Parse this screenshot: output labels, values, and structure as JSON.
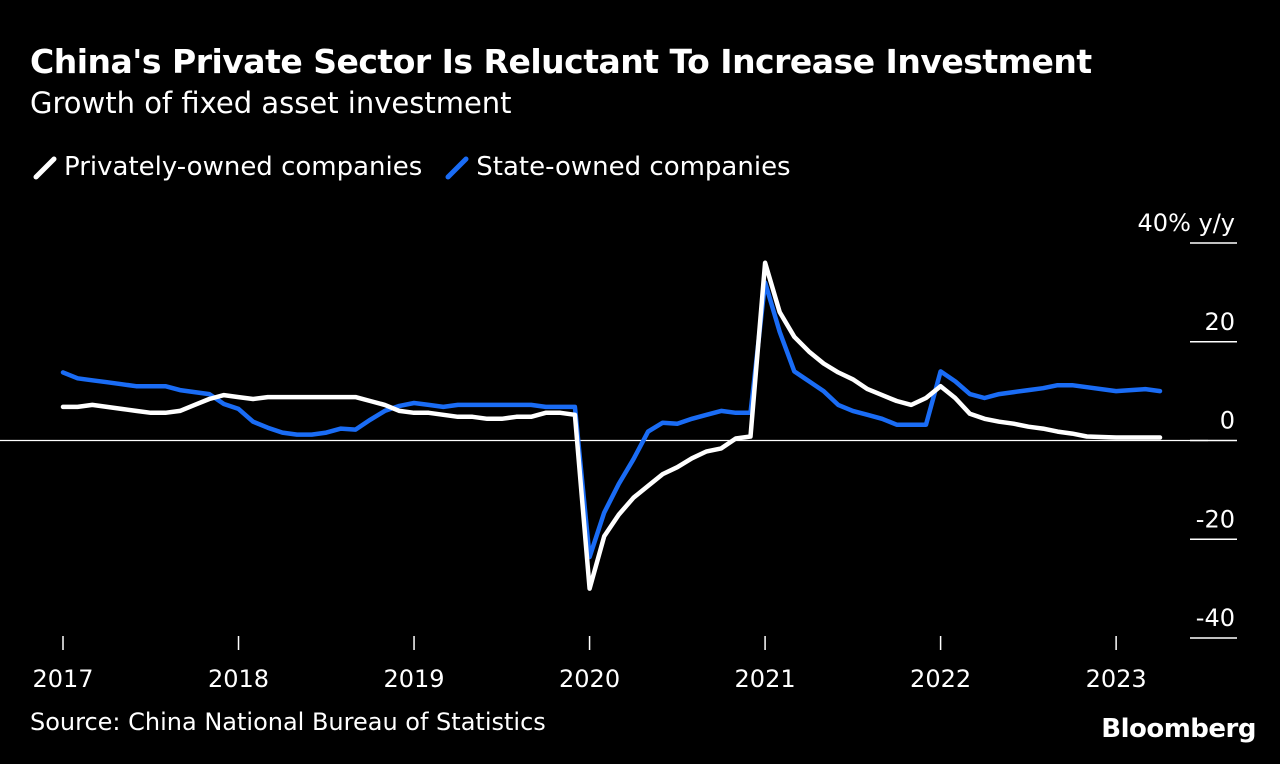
{
  "header": {
    "title": "China's Private Sector Is Reluctant To Increase Investment",
    "subtitle": "Growth of fixed asset investment"
  },
  "footer": {
    "source": "Source: China National Bureau of Statistics",
    "brand": "Bloomberg"
  },
  "colors": {
    "background": "#000000",
    "private": "#ffffff",
    "state": "#1a6cf5",
    "zero_line": "#ffffff"
  },
  "chart_data": {
    "type": "line",
    "title": "China's Private Sector Is Reluctant To Increase Investment",
    "subtitle": "Growth of fixed asset investment",
    "xlabel": "",
    "ylabel": "",
    "unit_label": "y/y",
    "ylim": [
      -40,
      40
    ],
    "y_ticks": [
      40,
      20,
      0,
      -20,
      -40
    ],
    "y_tick_labels": [
      "40% y/y",
      "20",
      "0",
      "-20",
      "-40"
    ],
    "x_ticks": [
      "2017-01",
      "2018-01",
      "2019-01",
      "2020-01",
      "2021-01",
      "2022-01",
      "2023-01"
    ],
    "x_tick_labels": [
      "2017",
      "2018",
      "2019",
      "2020",
      "2021",
      "2022",
      "2023"
    ],
    "legend_placement": "top-left",
    "grid": false,
    "series": [
      {
        "name": "Privately-owned companies",
        "color": "#ffffff",
        "points": [
          [
            "2017-01",
            6.8
          ],
          [
            "2017-02",
            6.8
          ],
          [
            "2017-03",
            7.2
          ],
          [
            "2017-04",
            6.8
          ],
          [
            "2017-05",
            6.4
          ],
          [
            "2017-06",
            6.0
          ],
          [
            "2017-07",
            5.6
          ],
          [
            "2017-08",
            5.6
          ],
          [
            "2017-09",
            6.0
          ],
          [
            "2017-10",
            7.2
          ],
          [
            "2017-11",
            8.4
          ],
          [
            "2017-12",
            9.2
          ],
          [
            "2018-01",
            8.8
          ],
          [
            "2018-02",
            8.4
          ],
          [
            "2018-03",
            8.8
          ],
          [
            "2018-04",
            8.8
          ],
          [
            "2018-05",
            8.8
          ],
          [
            "2018-06",
            8.8
          ],
          [
            "2018-07",
            8.8
          ],
          [
            "2018-08",
            8.8
          ],
          [
            "2018-09",
            8.8
          ],
          [
            "2018-10",
            8.0
          ],
          [
            "2018-11",
            7.2
          ],
          [
            "2018-12",
            6.0
          ],
          [
            "2019-01",
            5.6
          ],
          [
            "2019-02",
            5.6
          ],
          [
            "2019-03",
            5.2
          ],
          [
            "2019-04",
            4.8
          ],
          [
            "2019-05",
            4.8
          ],
          [
            "2019-06",
            4.4
          ],
          [
            "2019-07",
            4.4
          ],
          [
            "2019-08",
            4.8
          ],
          [
            "2019-09",
            4.8
          ],
          [
            "2019-10",
            5.6
          ],
          [
            "2019-11",
            5.6
          ],
          [
            "2019-12",
            5.2
          ],
          [
            "2020-01",
            -30.0
          ],
          [
            "2020-02",
            -19.4
          ],
          [
            "2020-03",
            -15.0
          ],
          [
            "2020-04",
            -11.6
          ],
          [
            "2020-05",
            -9.2
          ],
          [
            "2020-06",
            -6.8
          ],
          [
            "2020-07",
            -5.4
          ],
          [
            "2020-08",
            -3.6
          ],
          [
            "2020-09",
            -2.2
          ],
          [
            "2020-10",
            -1.6
          ],
          [
            "2020-11",
            0.4
          ],
          [
            "2020-12",
            0.8
          ],
          [
            "2021-01",
            36.0
          ],
          [
            "2021-02",
            26.0
          ],
          [
            "2021-03",
            21.0
          ],
          [
            "2021-04",
            18.0
          ],
          [
            "2021-05",
            15.6
          ],
          [
            "2021-06",
            13.8
          ],
          [
            "2021-07",
            12.4
          ],
          [
            "2021-08",
            10.4
          ],
          [
            "2021-09",
            9.2
          ],
          [
            "2021-10",
            8.0
          ],
          [
            "2021-11",
            7.2
          ],
          [
            "2021-12",
            8.6
          ],
          [
            "2022-01",
            11.0
          ],
          [
            "2022-02",
            8.6
          ],
          [
            "2022-03",
            5.4
          ],
          [
            "2022-04",
            4.4
          ],
          [
            "2022-05",
            3.8
          ],
          [
            "2022-06",
            3.4
          ],
          [
            "2022-07",
            2.8
          ],
          [
            "2022-08",
            2.4
          ],
          [
            "2022-09",
            1.8
          ],
          [
            "2022-10",
            1.4
          ],
          [
            "2022-11",
            0.8
          ],
          [
            "2023-01",
            0.6
          ],
          [
            "2023-02",
            0.6
          ],
          [
            "2023-03",
            0.6
          ],
          [
            "2023-04",
            0.6
          ]
        ]
      },
      {
        "name": "State-owned companies",
        "color": "#1a6cf5",
        "points": [
          [
            "2017-01",
            13.8
          ],
          [
            "2017-02",
            12.6
          ],
          [
            "2017-03",
            12.2
          ],
          [
            "2017-04",
            11.8
          ],
          [
            "2017-05",
            11.4
          ],
          [
            "2017-06",
            11.0
          ],
          [
            "2017-07",
            11.0
          ],
          [
            "2017-08",
            11.0
          ],
          [
            "2017-09",
            10.2
          ],
          [
            "2017-10",
            9.8
          ],
          [
            "2017-11",
            9.4
          ],
          [
            "2017-12",
            7.4
          ],
          [
            "2018-01",
            6.4
          ],
          [
            "2018-02",
            3.8
          ],
          [
            "2018-03",
            2.6
          ],
          [
            "2018-04",
            1.6
          ],
          [
            "2018-05",
            1.2
          ],
          [
            "2018-06",
            1.2
          ],
          [
            "2018-07",
            1.6
          ],
          [
            "2018-08",
            2.4
          ],
          [
            "2018-09",
            2.2
          ],
          [
            "2018-10",
            4.2
          ],
          [
            "2018-11",
            6.0
          ],
          [
            "2018-12",
            7.0
          ],
          [
            "2019-01",
            7.6
          ],
          [
            "2019-02",
            7.2
          ],
          [
            "2019-03",
            6.8
          ],
          [
            "2019-04",
            7.2
          ],
          [
            "2019-05",
            7.2
          ],
          [
            "2019-06",
            7.2
          ],
          [
            "2019-07",
            7.2
          ],
          [
            "2019-08",
            7.2
          ],
          [
            "2019-09",
            7.2
          ],
          [
            "2019-10",
            6.8
          ],
          [
            "2019-11",
            6.8
          ],
          [
            "2019-12",
            6.8
          ],
          [
            "2020-01",
            -23.6
          ],
          [
            "2020-02",
            -14.6
          ],
          [
            "2020-03",
            -8.8
          ],
          [
            "2020-04",
            -3.8
          ],
          [
            "2020-05",
            1.8
          ],
          [
            "2020-06",
            3.6
          ],
          [
            "2020-07",
            3.4
          ],
          [
            "2020-08",
            4.4
          ],
          [
            "2020-09",
            5.2
          ],
          [
            "2020-10",
            6.0
          ],
          [
            "2020-11",
            5.6
          ],
          [
            "2020-12",
            5.6
          ],
          [
            "2021-01",
            32.0
          ],
          [
            "2021-02",
            22.0
          ],
          [
            "2021-03",
            14.0
          ],
          [
            "2021-04",
            12.0
          ],
          [
            "2021-05",
            10.0
          ],
          [
            "2021-06",
            7.2
          ],
          [
            "2021-07",
            6.0
          ],
          [
            "2021-08",
            5.2
          ],
          [
            "2021-09",
            4.4
          ],
          [
            "2021-10",
            3.2
          ],
          [
            "2021-11",
            3.2
          ],
          [
            "2021-12",
            3.2
          ],
          [
            "2022-01",
            14.0
          ],
          [
            "2022-02",
            12.0
          ],
          [
            "2022-03",
            9.4
          ],
          [
            "2022-04",
            8.6
          ],
          [
            "2022-05",
            9.4
          ],
          [
            "2022-06",
            9.8
          ],
          [
            "2022-07",
            10.2
          ],
          [
            "2022-08",
            10.6
          ],
          [
            "2022-09",
            11.2
          ],
          [
            "2022-10",
            11.2
          ],
          [
            "2022-11",
            10.8
          ],
          [
            "2023-01",
            10.0
          ],
          [
            "2023-02",
            10.2
          ],
          [
            "2023-03",
            10.4
          ],
          [
            "2023-04",
            10.0
          ]
        ]
      }
    ]
  }
}
